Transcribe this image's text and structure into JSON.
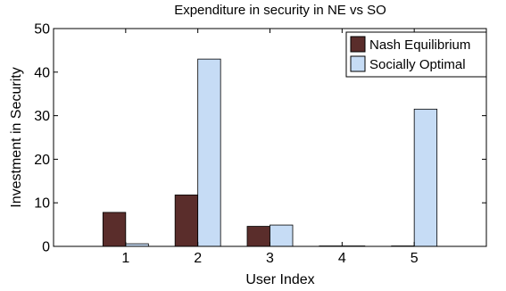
{
  "chart_data": {
    "type": "bar",
    "title": "Expenditure in security in NE vs SO",
    "xlabel": "User Index",
    "ylabel": "Investment in Security",
    "categories": [
      "1",
      "2",
      "3",
      "4",
      "5"
    ],
    "xlim": [
      0,
      6
    ],
    "ylim": [
      0,
      50
    ],
    "yticks": [
      0,
      10,
      20,
      30,
      40,
      50
    ],
    "grid": false,
    "legend_position": "top-right",
    "series": [
      {
        "name": "Nash Equilibrium",
        "color": "#5a2d2b",
        "values": [
          7.8,
          11.8,
          4.6,
          0.1,
          0.1
        ]
      },
      {
        "name": "Socially Optimal",
        "color": "#c6dcf5",
        "values": [
          0.6,
          43.0,
          4.9,
          0.1,
          31.5
        ]
      }
    ]
  }
}
